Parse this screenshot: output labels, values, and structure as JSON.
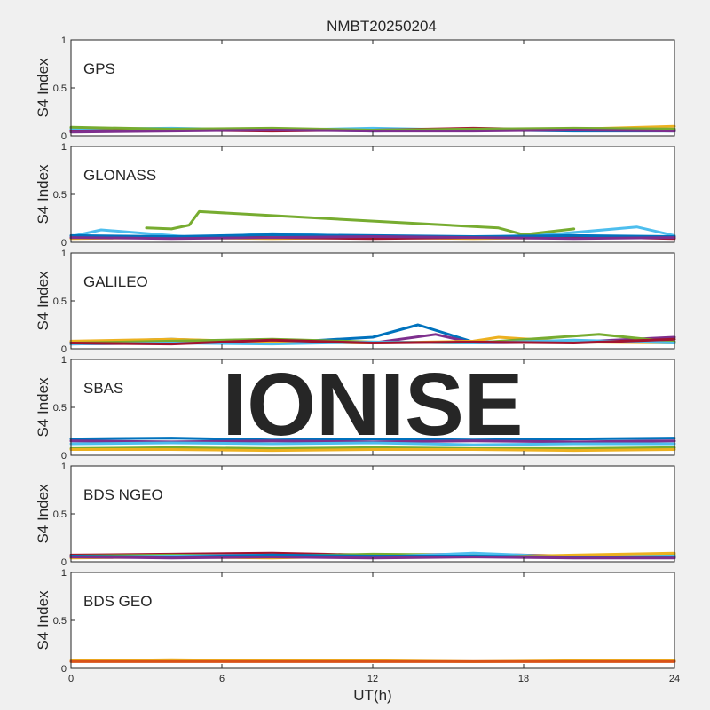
{
  "title": "NMBT20250204",
  "xlabel": "UT(h)",
  "watermark": "IONISE",
  "chart_data": {
    "type": "line",
    "title": "NMBT20250204",
    "xlabel": "UT(h)",
    "ylabel": "S4 Index",
    "xlim": [
      0,
      24
    ],
    "ylim": [
      0,
      1
    ],
    "xticks": [
      "0",
      "6",
      "12",
      "18",
      "24"
    ],
    "yticks": [
      "0",
      "0.5",
      "1"
    ],
    "grid": false,
    "series_colors": [
      "#0072BD",
      "#D95319",
      "#EDB120",
      "#7E2F8E",
      "#77AC30",
      "#4DBEEE",
      "#A2142F"
    ],
    "panels": [
      {
        "name": "GPS",
        "ylabel": "S4 Index",
        "traces": [
          {
            "color": "#EDB120",
            "x": [
              0,
              4,
              8,
              12,
              16,
              20,
              24
            ],
            "y": [
              0.08,
              0.07,
              0.06,
              0.07,
              0.06,
              0.07,
              0.1
            ]
          },
          {
            "color": "#0072BD",
            "x": [
              0,
              4,
              8,
              12,
              16,
              20,
              24
            ],
            "y": [
              0.06,
              0.06,
              0.07,
              0.05,
              0.06,
              0.05,
              0.05
            ]
          },
          {
            "color": "#4DBEEE",
            "x": [
              0,
              4,
              8,
              12,
              16,
              20,
              24
            ],
            "y": [
              0.07,
              0.08,
              0.06,
              0.08,
              0.06,
              0.07,
              0.07
            ]
          },
          {
            "color": "#A2142F",
            "x": [
              0,
              4,
              8,
              12,
              16,
              20,
              24
            ],
            "y": [
              0.05,
              0.06,
              0.05,
              0.06,
              0.08,
              0.06,
              0.06
            ]
          },
          {
            "color": "#77AC30",
            "x": [
              0,
              4,
              8,
              12,
              16,
              20,
              24
            ],
            "y": [
              0.09,
              0.07,
              0.08,
              0.06,
              0.07,
              0.08,
              0.07
            ]
          },
          {
            "color": "#7E2F8E",
            "x": [
              0,
              4,
              8,
              12,
              16,
              20,
              24
            ],
            "y": [
              0.04,
              0.05,
              0.06,
              0.05,
              0.05,
              0.06,
              0.05
            ]
          }
        ]
      },
      {
        "name": "GLONASS",
        "ylabel": "S4 Index",
        "traces": [
          {
            "color": "#4DBEEE",
            "x": [
              0,
              1.2,
              5,
              8,
              12,
              16,
              19,
              22.5,
              24
            ],
            "y": [
              0.06,
              0.13,
              0.05,
              0.09,
              0.06,
              0.05,
              0.08,
              0.16,
              0.07
            ]
          },
          {
            "color": "#77AC30",
            "x": [
              3,
              4,
              4.7,
              5.1,
              17,
              18,
              20
            ],
            "y": [
              0.15,
              0.14,
              0.18,
              0.32,
              0.15,
              0.08,
              0.14
            ]
          },
          {
            "color": "#EDB120",
            "x": [
              0,
              4,
              8,
              12,
              16,
              20,
              24
            ],
            "y": [
              0.04,
              0.05,
              0.04,
              0.05,
              0.04,
              0.05,
              0.05
            ]
          },
          {
            "color": "#A2142F",
            "x": [
              0,
              4,
              8,
              12,
              16,
              20,
              24
            ],
            "y": [
              0.05,
              0.06,
              0.05,
              0.04,
              0.05,
              0.06,
              0.04
            ]
          },
          {
            "color": "#0072BD",
            "x": [
              0,
              4,
              8,
              12,
              16,
              20,
              24
            ],
            "y": [
              0.07,
              0.06,
              0.08,
              0.07,
              0.06,
              0.07,
              0.06
            ]
          },
          {
            "color": "#7E2F8E",
            "x": [
              0,
              4,
              8,
              12,
              16,
              20,
              24
            ],
            "y": [
              0.05,
              0.04,
              0.05,
              0.06,
              0.05,
              0.04,
              0.05
            ]
          }
        ]
      },
      {
        "name": "GALILEO",
        "ylabel": "S4 Index",
        "traces": [
          {
            "color": "#0072BD",
            "x": [
              0,
              4,
              8,
              12,
              13.8,
              16,
              20,
              24
            ],
            "y": [
              0.07,
              0.1,
              0.06,
              0.12,
              0.25,
              0.07,
              0.08,
              0.07
            ]
          },
          {
            "color": "#7E2F8E",
            "x": [
              0,
              4,
              8,
              12,
              14.5,
              16,
              20,
              24
            ],
            "y": [
              0.05,
              0.06,
              0.07,
              0.06,
              0.15,
              0.06,
              0.07,
              0.12
            ]
          },
          {
            "color": "#EDB120",
            "x": [
              0,
              4,
              8,
              12,
              16,
              17,
              20,
              24
            ],
            "y": [
              0.08,
              0.1,
              0.07,
              0.06,
              0.08,
              0.12,
              0.07,
              0.06
            ]
          },
          {
            "color": "#77AC30",
            "x": [
              0,
              4,
              8,
              12,
              16,
              21,
              24
            ],
            "y": [
              0.06,
              0.08,
              0.1,
              0.07,
              0.06,
              0.15,
              0.07
            ]
          },
          {
            "color": "#4DBEEE",
            "x": [
              0,
              4,
              8,
              12,
              16,
              20,
              24
            ],
            "y": [
              0.05,
              0.06,
              0.05,
              0.07,
              0.06,
              0.09,
              0.06
            ]
          },
          {
            "color": "#A2142F",
            "x": [
              0,
              4,
              8,
              12,
              16,
              20,
              24
            ],
            "y": [
              0.06,
              0.05,
              0.09,
              0.06,
              0.07,
              0.06,
              0.1
            ]
          }
        ]
      },
      {
        "name": "SBAS",
        "ylabel": "S4 Index",
        "traces": [
          {
            "color": "#0072BD",
            "x": [
              0,
              4,
              8,
              12,
              16,
              20,
              24
            ],
            "y": [
              0.17,
              0.18,
              0.16,
              0.17,
              0.16,
              0.17,
              0.18
            ]
          },
          {
            "color": "#7E2F8E",
            "x": [
              0,
              4,
              8,
              12,
              16,
              20,
              24
            ],
            "y": [
              0.15,
              0.14,
              0.15,
              0.14,
              0.15,
              0.14,
              0.15
            ]
          },
          {
            "color": "#4DBEEE",
            "x": [
              0,
              4,
              8,
              12,
              16,
              20,
              24
            ],
            "y": [
              0.12,
              0.13,
              0.12,
              0.13,
              0.11,
              0.12,
              0.12
            ]
          },
          {
            "color": "#77AC30",
            "x": [
              0,
              4,
              8,
              12,
              16,
              20,
              24
            ],
            "y": [
              0.07,
              0.08,
              0.07,
              0.08,
              0.07,
              0.07,
              0.08
            ]
          },
          {
            "color": "#EDB120",
            "x": [
              0,
              4,
              8,
              12,
              16,
              20,
              24
            ],
            "y": [
              0.06,
              0.06,
              0.05,
              0.06,
              0.06,
              0.05,
              0.06
            ]
          }
        ]
      },
      {
        "name": "BDS NGEO",
        "ylabel": "S4 Index",
        "traces": [
          {
            "color": "#A2142F",
            "x": [
              0,
              4,
              8,
              12,
              16,
              20,
              24
            ],
            "y": [
              0.07,
              0.08,
              0.09,
              0.07,
              0.08,
              0.06,
              0.05
            ]
          },
          {
            "color": "#77AC30",
            "x": [
              0,
              4,
              8,
              12,
              16,
              20,
              24
            ],
            "y": [
              0.06,
              0.07,
              0.06,
              0.08,
              0.07,
              0.06,
              0.07
            ]
          },
          {
            "color": "#4DBEEE",
            "x": [
              0,
              4,
              8,
              12,
              16,
              20,
              24
            ],
            "y": [
              0.05,
              0.06,
              0.07,
              0.05,
              0.09,
              0.05,
              0.06
            ]
          },
          {
            "color": "#EDB120",
            "x": [
              0,
              4,
              8,
              12,
              16,
              20,
              24
            ],
            "y": [
              0.04,
              0.05,
              0.04,
              0.06,
              0.05,
              0.07,
              0.09
            ]
          },
          {
            "color": "#0072BD",
            "x": [
              0,
              4,
              8,
              12,
              16,
              20,
              24
            ],
            "y": [
              0.06,
              0.05,
              0.07,
              0.06,
              0.06,
              0.05,
              0.05
            ]
          },
          {
            "color": "#7E2F8E",
            "x": [
              0,
              4,
              8,
              12,
              16,
              20,
              24
            ],
            "y": [
              0.05,
              0.04,
              0.05,
              0.04,
              0.05,
              0.04,
              0.04
            ]
          }
        ]
      },
      {
        "name": "BDS GEO",
        "ylabel": "S4 Index",
        "traces": [
          {
            "color": "#EDB120",
            "x": [
              0,
              4,
              8,
              12,
              16,
              20,
              24
            ],
            "y": [
              0.08,
              0.09,
              0.08,
              0.08,
              0.07,
              0.08,
              0.08
            ]
          },
          {
            "color": "#D95319",
            "x": [
              0,
              4,
              8,
              12,
              16,
              20,
              24
            ],
            "y": [
              0.07,
              0.07,
              0.07,
              0.07,
              0.07,
              0.07,
              0.07
            ]
          }
        ]
      }
    ]
  }
}
